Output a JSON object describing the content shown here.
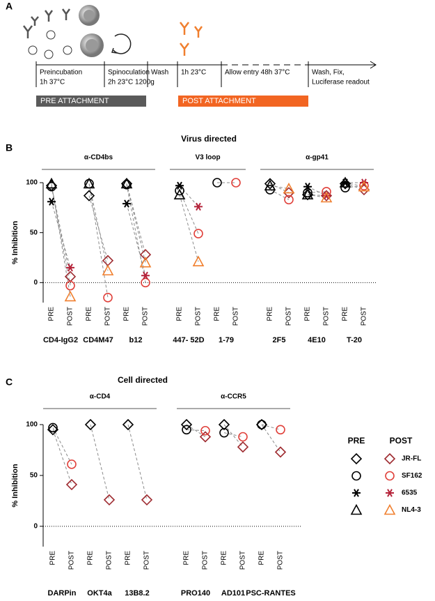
{
  "panel_a": {
    "label": "A",
    "steps": [
      [
        "Preincubation",
        "1h 37°C"
      ],
      [
        "Spinoculation",
        "2h 23°C 1200g"
      ],
      [
        "Wash"
      ],
      [
        "1h 23°C"
      ],
      [
        "Allow entry  48h 37°C"
      ],
      [
        "Wash, Fix,",
        "Luciferase readout"
      ]
    ],
    "bars": [
      "PRE ATTACHMENT",
      "POST ATTACHMENT"
    ]
  },
  "legend": {
    "headers": [
      "PRE",
      "POST"
    ],
    "pre_color": "#000000",
    "series": [
      {
        "name": "JR-FL",
        "color": "#9e2a2f",
        "marker": "diamond"
      },
      {
        "name": "SF162",
        "color": "#e0403a",
        "marker": "circle"
      },
      {
        "name": "6535",
        "color": "#b5233a",
        "marker": "asterisk"
      },
      {
        "name": "NL4-3",
        "color": "#f07f2e",
        "marker": "triangle"
      }
    ]
  },
  "chart_data": [
    {
      "type": "scatter",
      "panel": "B",
      "title": "Virus directed",
      "ylabel": "% Inhibition",
      "ylim": [
        -20,
        100
      ],
      "yticks": [
        0,
        50,
        100
      ],
      "conditions": [
        "PRE",
        "POST"
      ],
      "groups": [
        {
          "name": "α-CD4bs",
          "antibodies": [
            {
              "name": "CD4-IgG2",
              "pre": [
                97,
                96,
                81,
                99
              ],
              "post": [
                6,
                -3,
                15,
                -14
              ]
            },
            {
              "name": "CD4M47",
              "pre": [
                87,
                99,
                null,
                99
              ],
              "post": [
                22,
                -15,
                null,
                12
              ]
            },
            {
              "name": "b12",
              "pre": [
                99,
                98,
                79,
                99
              ],
              "post": [
                28,
                0,
                7,
                20
              ]
            }
          ]
        },
        {
          "name": "V3 loop",
          "antibodies": [
            {
              "name": "447- 52D",
              "pre": [
                null,
                92,
                97,
                88
              ],
              "post": [
                null,
                49,
                76,
                21
              ]
            },
            {
              "name": "1-79",
              "pre": [
                null,
                100,
                null,
                null
              ],
              "post": [
                null,
                100,
                null,
                null
              ]
            }
          ]
        },
        {
          "name": "α-gp41",
          "antibodies": [
            {
              "name": "2F5",
              "pre": [
                99,
                93,
                null,
                97
              ],
              "post": [
                90,
                83,
                null,
                94
              ]
            },
            {
              "name": "4E10",
              "pre": [
                88,
                90,
                96,
                88
              ],
              "post": [
                87,
                91,
                87,
                85
              ]
            },
            {
              "name": "T-20",
              "pre": [
                99,
                95,
                100,
                100
              ],
              "post": [
                93,
                97,
                100,
                96
              ]
            }
          ]
        }
      ]
    },
    {
      "type": "scatter",
      "panel": "C",
      "title": "Cell directed",
      "ylabel": "% Inhibition",
      "ylim": [
        -20,
        100
      ],
      "yticks": [
        0,
        50,
        100
      ],
      "conditions": [
        "PRE",
        "POST"
      ],
      "groups": [
        {
          "name": "α-CD4",
          "antibodies": [
            {
              "name": "DARPin",
              "pre": [
                95,
                97,
                null,
                null
              ],
              "post": [
                41,
                61,
                null,
                null
              ]
            },
            {
              "name": "OKT4a",
              "pre": [
                100,
                null,
                null,
                null
              ],
              "post": [
                26,
                null,
                null,
                null
              ]
            },
            {
              "name": "13B8.2",
              "pre": [
                100,
                null,
                null,
                null
              ],
              "post": [
                26,
                null,
                null,
                null
              ]
            }
          ]
        },
        {
          "name": "α-CCR5",
          "antibodies": [
            {
              "name": "PRO140",
              "pre": [
                100,
                95,
                null,
                null
              ],
              "post": [
                88,
                94,
                null,
                null
              ]
            },
            {
              "name": "AD101",
              "pre": [
                100,
                92,
                null,
                null
              ],
              "post": [
                78,
                88,
                null,
                null
              ]
            },
            {
              "name": "PSC-RANTES",
              "pre": [
                100,
                100,
                null,
                null
              ],
              "post": [
                73,
                95,
                null,
                null
              ]
            }
          ]
        }
      ]
    }
  ]
}
